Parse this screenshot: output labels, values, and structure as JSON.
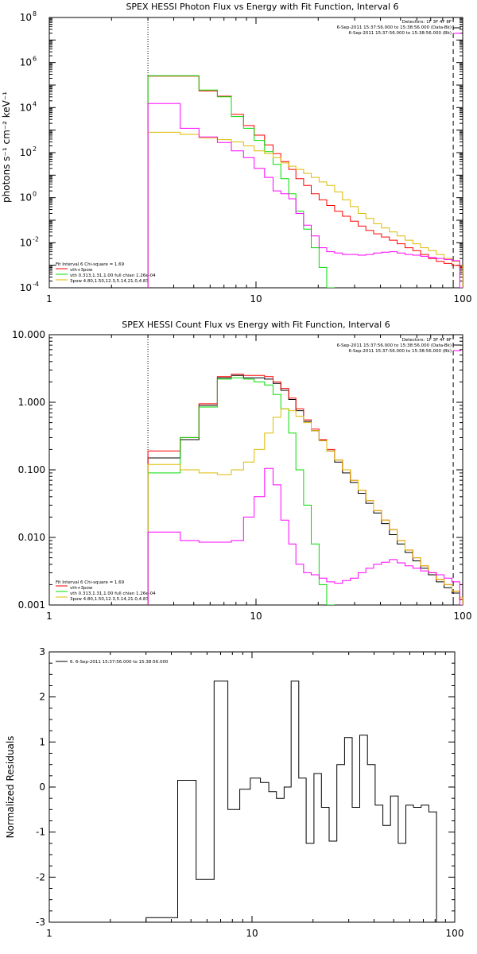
{
  "chart_data": [
    {
      "type": "line",
      "title": "SPEX HESSI Photon Flux vs Energy with Fit Function, Interval 6",
      "ylabel": "photons s⁻¹ cm⁻² keV⁻¹",
      "xscale": "log",
      "yscale": "log",
      "xlim": [
        1,
        100
      ],
      "ylim": [
        0.0001,
        100000000
      ],
      "xticks": [
        {
          "v": 1,
          "label": "1"
        },
        {
          "v": 10,
          "label": "10"
        },
        {
          "v": 100,
          "label": "100"
        }
      ],
      "yticks": [
        {
          "v": 0.0001,
          "label": "10",
          "exp": "-4"
        },
        {
          "v": 0.01,
          "label": "10",
          "exp": "-2"
        },
        {
          "v": 1,
          "label": "10",
          "exp": "0"
        },
        {
          "v": 100,
          "label": "10",
          "exp": "2"
        },
        {
          "v": 10000,
          "label": "10",
          "exp": "4"
        },
        {
          "v": 1000000,
          "label": "10",
          "exp": "6"
        },
        {
          "v": 100000000,
          "label": "10",
          "exp": "8"
        }
      ],
      "vlines": [
        {
          "x": 3,
          "style": "dotted",
          "color": "#000000"
        },
        {
          "x": 90,
          "style": "dashed",
          "color": "#000000"
        }
      ],
      "legend_topright": [
        "Detectors: 1F 3F 4F 8F",
        "6-Sep-2011 15:37:56.000 to 15:38:56.000 (Data-Bk)",
        "6-Sep-2011 15:37:56.000 to 15:38:56.000 (Bk)"
      ],
      "legend_bottomleft": {
        "header": "Fit Interval  6    Chi-square = 1.69",
        "items": [
          {
            "label": "vth+3pow",
            "color": "#ff0000"
          },
          {
            "label": "vth 0.313,1.31,1.00  full chian 1.26e-04",
            "color": "#00dd00"
          },
          {
            "label": "3pow 4.80,1.50,12.3,5.14,21.0,4.83",
            "color": "#ddbb00"
          }
        ]
      },
      "edges": [
        3,
        4.3,
        5.3,
        6.5,
        7.6,
        8.7,
        9.8,
        11,
        12.1,
        13.2,
        14.4,
        15.6,
        17,
        18.5,
        20.2,
        22,
        24,
        26.2,
        28.6,
        31.2,
        34,
        37.1,
        40.5,
        44.2,
        48.2,
        52.6,
        57.4,
        62.6,
        68.3,
        74.5,
        81.3,
        88.7,
        96.8,
        100
      ],
      "series": [
        {
          "name": "vth+3pow",
          "color": "#ff0000",
          "values": [
            250000,
            250000,
            55000,
            32000,
            5000,
            1600,
            600,
            220,
            90,
            40,
            18,
            7,
            3.5,
            1.5,
            0.8,
            0.45,
            0.25,
            0.15,
            0.09,
            0.055,
            0.035,
            0.025,
            0.018,
            0.013,
            0.009,
            0.006,
            0.0045,
            0.003,
            0.002,
            0.0015,
            0.0012,
            0.001,
            0.0008
          ]
        },
        {
          "name": "vth",
          "color": "#00dd00",
          "values": [
            260000,
            260000,
            60000,
            30000,
            4000,
            1200,
            350,
            110,
            30,
            7,
            1.5,
            0.25,
            0.04,
            0.006,
            0.0008,
            0.0001
          ]
        },
        {
          "name": "3pow",
          "color": "#ddbb00",
          "values": [
            800,
            650,
            450,
            380,
            300,
            200,
            120,
            90,
            60,
            35,
            25,
            18,
            12,
            8,
            5,
            3.5,
            1.8,
            0.8,
            0.4,
            0.2,
            0.12,
            0.07,
            0.045,
            0.03,
            0.02,
            0.013,
            0.009,
            0.006,
            0.0045,
            0.003,
            0.002,
            0.0015,
            0.001
          ]
        },
        {
          "name": "Bk",
          "color": "#ff00ff",
          "values": [
            15000,
            1200,
            500,
            280,
            120,
            60,
            20,
            8,
            2,
            1.5,
            0.9,
            0.2,
            0.06,
            0.02,
            0.006,
            0.004,
            0.0035,
            0.003,
            0.003,
            0.0028,
            0.003,
            0.0035,
            0.0038,
            0.004,
            0.0035,
            0.003,
            0.0028,
            0.0025,
            0.0022,
            0.002,
            0.0018,
            0.0016,
            5e-05
          ]
        }
      ]
    },
    {
      "type": "line",
      "title": "SPEX HESSI Count Flux vs Energy with Fit Function, Interval 6",
      "xscale": "log",
      "yscale": "log",
      "xlim": [
        1,
        100
      ],
      "ylim": [
        0.001,
        10
      ],
      "xticks": [
        {
          "v": 1,
          "label": "1"
        },
        {
          "v": 10,
          "label": "10"
        },
        {
          "v": 100,
          "label": "100"
        }
      ],
      "yticks": [
        {
          "v": 0.001,
          "label": "0.001"
        },
        {
          "v": 0.01,
          "label": "0.010"
        },
        {
          "v": 0.1,
          "label": "0.100"
        },
        {
          "v": 1,
          "label": "1.000"
        },
        {
          "v": 10,
          "label": "10.000"
        }
      ],
      "vlines": [
        {
          "x": 3,
          "style": "dotted",
          "color": "#000000"
        },
        {
          "x": 90,
          "style": "dashed",
          "color": "#000000"
        }
      ],
      "legend_topright": [
        "Detectors: 1F 3F 4F 8F",
        "6-Sep-2011 15:37:56.000 to 15:38:56.000 (Data-Bk)",
        "6-Sep-2011 15:37:56.000 to 15:38:56.000 (Bk)"
      ],
      "legend_bottomleft": {
        "header": "Fit Interval  6    Chi-square = 1.69",
        "items": [
          {
            "label": "vth+3pow",
            "color": "#ff0000"
          },
          {
            "label": "vth 0.313,1.31,1.00  full chian 1.26e-04",
            "color": "#00dd00"
          },
          {
            "label": "3pow 4.80,1.50,12.3,5.14,21.0,4.83",
            "color": "#ddbb00"
          }
        ]
      },
      "edges": [
        3,
        4.3,
        5.3,
        6.5,
        7.6,
        8.7,
        9.8,
        11,
        12.1,
        13.2,
        14.4,
        15.6,
        17,
        18.5,
        20.2,
        22,
        24,
        26.2,
        28.6,
        31.2,
        34,
        37.1,
        40.5,
        44.2,
        48.2,
        52.6,
        57.4,
        62.6,
        68.3,
        74.5,
        81.3,
        88.7,
        96.8,
        100
      ],
      "series": [
        {
          "name": "Data-Bk",
          "color": "#000000",
          "values": [
            0.15,
            0.28,
            0.9,
            2.3,
            2.5,
            2.3,
            2.3,
            2.2,
            1.9,
            1.5,
            1.1,
            0.75,
            0.52,
            0.38,
            0.27,
            0.19,
            0.13,
            0.09,
            0.065,
            0.045,
            0.032,
            0.023,
            0.016,
            0.011,
            0.008,
            0.006,
            0.0045,
            0.0035,
            0.0028,
            0.0022,
            0.0018,
            0.0015,
            0.0012
          ]
        },
        {
          "name": "vth+3pow",
          "color": "#ff0000",
          "values": [
            0.19,
            0.3,
            0.95,
            2.4,
            2.6,
            2.5,
            2.5,
            2.4,
            2.0,
            1.6,
            1.15,
            0.8,
            0.55,
            0.4,
            0.28,
            0.2,
            0.14,
            0.1,
            0.07,
            0.05,
            0.035,
            0.025,
            0.018,
            0.013,
            0.009,
            0.0065,
            0.005,
            0.0038,
            0.003,
            0.0024,
            0.002,
            0.0016,
            0.0012
          ]
        },
        {
          "name": "vth",
          "color": "#00dd00",
          "values": [
            0.09,
            0.3,
            0.85,
            2.2,
            2.3,
            2.2,
            2.0,
            1.8,
            1.3,
            0.8,
            0.35,
            0.1,
            0.03,
            0.008,
            0.002,
            0.0009
          ]
        },
        {
          "name": "3pow",
          "color": "#ddbb00",
          "values": [
            0.12,
            0.1,
            0.09,
            0.085,
            0.1,
            0.13,
            0.2,
            0.35,
            0.6,
            0.8,
            0.75,
            0.62,
            0.5,
            0.38,
            0.27,
            0.19,
            0.14,
            0.1,
            0.07,
            0.05,
            0.035,
            0.025,
            0.018,
            0.013,
            0.009,
            0.0065,
            0.005,
            0.0038,
            0.003,
            0.0024,
            0.002,
            0.0016,
            0.0013
          ]
        },
        {
          "name": "Bk",
          "color": "#ff00ff",
          "values": [
            0.012,
            0.009,
            0.0085,
            0.0085,
            0.009,
            0.02,
            0.04,
            0.105,
            0.06,
            0.018,
            0.008,
            0.004,
            0.003,
            0.0028,
            0.0025,
            0.0022,
            0.0021,
            0.0023,
            0.0025,
            0.003,
            0.0035,
            0.004,
            0.0043,
            0.0047,
            0.0042,
            0.0038,
            0.0035,
            0.0032,
            0.003,
            0.0028,
            0.0025,
            0.0022,
            0.001
          ]
        }
      ]
    },
    {
      "type": "line",
      "ylabel": "Normalized Residuals",
      "xscale": "log",
      "yscale": "linear",
      "xlim": [
        1,
        100
      ],
      "ylim": [
        -3,
        3
      ],
      "xticks": [
        {
          "v": 1,
          "label": "1"
        },
        {
          "v": 10,
          "label": "10"
        },
        {
          "v": 100,
          "label": "100"
        }
      ],
      "yticks": [
        {
          "v": -3,
          "label": "-3"
        },
        {
          "v": -2,
          "label": "-2"
        },
        {
          "v": -1,
          "label": "-1"
        },
        {
          "v": 0,
          "label": "0"
        },
        {
          "v": 1,
          "label": "1"
        },
        {
          "v": 2,
          "label": "2"
        },
        {
          "v": 3,
          "label": "3"
        }
      ],
      "legend_topleft": "6.  6-Sep-2011 15:37:56.000 to 15:38:56.000",
      "edges": [
        3,
        4.3,
        5.3,
        6.5,
        7.6,
        8.7,
        9.8,
        11,
        12.1,
        13.2,
        14.4,
        15.6,
        17,
        18.5,
        20.2,
        22,
        24,
        26.2,
        28.6,
        31.2,
        34,
        37.1,
        40.5,
        44.2,
        48.2,
        52.6,
        57.4,
        62.6,
        68.3,
        74.5,
        81.3,
        88.7,
        96.8,
        100
      ],
      "series": [
        {
          "name": "residuals",
          "color": "#000000",
          "values": [
            -2.9,
            0.15,
            -2.05,
            2.35,
            -0.5,
            -0.05,
            0.2,
            0.1,
            -0.1,
            -0.25,
            0.0,
            2.35,
            0.2,
            -1.25,
            0.3,
            -0.45,
            -1.2,
            0.5,
            1.1,
            -0.45,
            1.15,
            0.5,
            -0.4,
            -0.85,
            -0.2,
            -1.25,
            -0.4,
            -0.45,
            -0.4,
            -0.55,
            -3.0,
            -3.0,
            -3.0
          ]
        }
      ]
    }
  ]
}
